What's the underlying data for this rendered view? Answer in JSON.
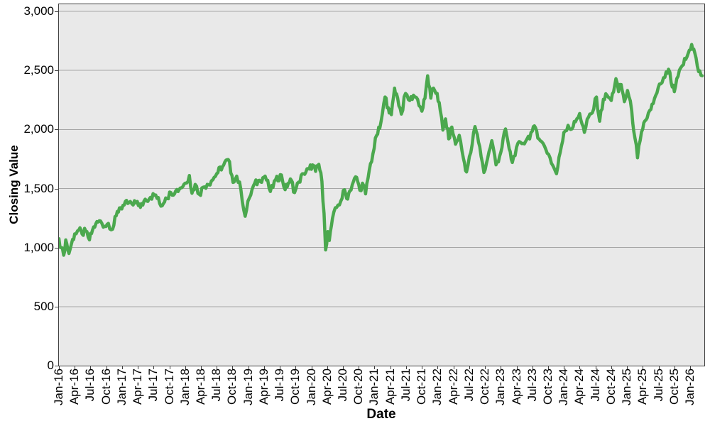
{
  "chart_data": {
    "type": "line",
    "title": "",
    "xlabel": "Date",
    "ylabel": "Closing Value",
    "legend": "none",
    "grid": "horizontal",
    "x_unit": "months since Jan-2016",
    "xlim_months": [
      0,
      122.7
    ],
    "ylim": [
      0,
      3059
    ],
    "x_tick_interval_months": 3,
    "x_tick_labels": [
      "Jan-16",
      "Apr-16",
      "Jul-16",
      "Oct-16",
      "Jan-17",
      "Apr-17",
      "Jul-17",
      "Oct-17",
      "Jan-18",
      "Apr-18",
      "Jul-18",
      "Oct-18",
      "Jan-19",
      "Apr-19",
      "Jul-19",
      "Oct-19",
      "Jan-20",
      "Apr-20",
      "Jul-20",
      "Oct-20",
      "Jan-21",
      "Apr-21",
      "Jul-21",
      "Oct-21",
      "Jan-22",
      "Apr-22",
      "Jul-22",
      "Oct-22",
      "Jan-23",
      "Apr-23",
      "Jul-23",
      "Oct-23",
      "Jan-24",
      "Apr-24",
      "Jul-24",
      "Oct-24",
      "Jan-25",
      "Apr-25",
      "Jul-25",
      "Oct-25",
      "Jan-26"
    ],
    "y_ticks": [
      {
        "value": 0,
        "label": "0"
      },
      {
        "value": 500,
        "label": "500"
      },
      {
        "value": 1000,
        "label": "1,000"
      },
      {
        "value": 1500,
        "label": "1,500"
      },
      {
        "value": 2000,
        "label": "2,000"
      },
      {
        "value": 2500,
        "label": "2,500"
      },
      {
        "value": 3000,
        "label": "3,000"
      }
    ],
    "series": [
      {
        "name": "Closing Value",
        "color": "#4ba84e",
        "points": [
          [
            0,
            1075
          ],
          [
            0.4,
            1000
          ],
          [
            0.9,
            935
          ],
          [
            1.3,
            1065
          ],
          [
            1.9,
            950
          ],
          [
            2.4,
            1035
          ],
          [
            3,
            1115
          ],
          [
            3.8,
            1150
          ],
          [
            4.4,
            1115
          ],
          [
            5.1,
            1140
          ],
          [
            5.8,
            1065
          ],
          [
            6.4,
            1150
          ],
          [
            7,
            1200
          ],
          [
            7.9,
            1225
          ],
          [
            8.7,
            1180
          ],
          [
            9.4,
            1205
          ],
          [
            10.2,
            1155
          ],
          [
            10.9,
            1270
          ],
          [
            11.5,
            1335
          ],
          [
            12.4,
            1360
          ],
          [
            13.3,
            1380
          ],
          [
            14.1,
            1360
          ],
          [
            14.9,
            1390
          ],
          [
            15.5,
            1340
          ],
          [
            16.4,
            1410
          ],
          [
            17.4,
            1425
          ],
          [
            18.4,
            1445
          ],
          [
            19.4,
            1350
          ],
          [
            20.3,
            1420
          ],
          [
            21.3,
            1465
          ],
          [
            22.2,
            1480
          ],
          [
            23.1,
            1505
          ],
          [
            24,
            1545
          ],
          [
            24.8,
            1610
          ],
          [
            25.3,
            1460
          ],
          [
            25.9,
            1535
          ],
          [
            26.7,
            1450
          ],
          [
            27.4,
            1510
          ],
          [
            28.2,
            1535
          ],
          [
            29,
            1565
          ],
          [
            30,
            1625
          ],
          [
            31.1,
            1685
          ],
          [
            32.2,
            1745
          ],
          [
            32.9,
            1610
          ],
          [
            33.3,
            1555
          ],
          [
            33.8,
            1605
          ],
          [
            34.6,
            1490
          ],
          [
            35.4,
            1265
          ],
          [
            36.2,
            1420
          ],
          [
            37,
            1525
          ],
          [
            38.1,
            1570
          ],
          [
            39.2,
            1605
          ],
          [
            40.2,
            1475
          ],
          [
            41.2,
            1575
          ],
          [
            42.3,
            1615
          ],
          [
            43,
            1490
          ],
          [
            43.6,
            1545
          ],
          [
            44.2,
            1570
          ],
          [
            44.8,
            1465
          ],
          [
            45.6,
            1555
          ],
          [
            46.5,
            1625
          ],
          [
            47.6,
            1665
          ],
          [
            48.2,
            1700
          ],
          [
            48.8,
            1645
          ],
          [
            49.4,
            1705
          ],
          [
            50,
            1560
          ],
          [
            50.4,
            1290
          ],
          [
            50.7,
            980
          ],
          [
            51.1,
            1135
          ],
          [
            51.4,
            1060
          ],
          [
            52,
            1245
          ],
          [
            52.8,
            1340
          ],
          [
            53.6,
            1395
          ],
          [
            54.3,
            1490
          ],
          [
            54.7,
            1415
          ],
          [
            55.3,
            1480
          ],
          [
            56,
            1560
          ],
          [
            56.6,
            1595
          ],
          [
            57.2,
            1485
          ],
          [
            57.7,
            1545
          ],
          [
            58.3,
            1455
          ],
          [
            59,
            1655
          ],
          [
            59.7,
            1795
          ],
          [
            60.4,
            1950
          ],
          [
            61,
            2010
          ],
          [
            61.5,
            2135
          ],
          [
            62,
            2275
          ],
          [
            62.6,
            2185
          ],
          [
            63.2,
            2125
          ],
          [
            63.8,
            2350
          ],
          [
            64.4,
            2265
          ],
          [
            65.1,
            2130
          ],
          [
            65.9,
            2305
          ],
          [
            66.7,
            2245
          ],
          [
            67.4,
            2290
          ],
          [
            68.2,
            2255
          ],
          [
            69,
            2155
          ],
          [
            69.6,
            2265
          ],
          [
            70.1,
            2455
          ],
          [
            70.7,
            2265
          ],
          [
            71.2,
            2350
          ],
          [
            71.9,
            2305
          ],
          [
            72.5,
            2160
          ],
          [
            73,
            1995
          ],
          [
            73.5,
            2090
          ],
          [
            74.1,
            1920
          ],
          [
            74.7,
            2020
          ],
          [
            75.4,
            1875
          ],
          [
            76.1,
            1950
          ],
          [
            76.9,
            1755
          ],
          [
            77.5,
            1640
          ],
          [
            78.3,
            1805
          ],
          [
            79.1,
            2025
          ],
          [
            80,
            1855
          ],
          [
            80.8,
            1635
          ],
          [
            81.5,
            1755
          ],
          [
            82.3,
            1905
          ],
          [
            83.1,
            1700
          ],
          [
            84,
            1805
          ],
          [
            84.9,
            2005
          ],
          [
            85.6,
            1835
          ],
          [
            86.2,
            1720
          ],
          [
            87,
            1850
          ],
          [
            88,
            1880
          ],
          [
            89,
            1920
          ],
          [
            90,
            1985
          ],
          [
            90.6,
            2015
          ],
          [
            91.5,
            1905
          ],
          [
            92.3,
            1860
          ],
          [
            93.1,
            1790
          ],
          [
            93.9,
            1695
          ],
          [
            94.6,
            1625
          ],
          [
            95.3,
            1805
          ],
          [
            96,
            1975
          ],
          [
            96.8,
            2035
          ],
          [
            97.3,
            2000
          ],
          [
            98.2,
            2065
          ],
          [
            99,
            2135
          ],
          [
            99.9,
            1975
          ],
          [
            100.7,
            2105
          ],
          [
            101.4,
            2140
          ],
          [
            102.2,
            2275
          ],
          [
            102.8,
            2070
          ],
          [
            103.5,
            2255
          ],
          [
            104.2,
            2290
          ],
          [
            105,
            2245
          ],
          [
            105.9,
            2430
          ],
          [
            106.4,
            2320
          ],
          [
            106.9,
            2380
          ],
          [
            107.5,
            2235
          ],
          [
            108.1,
            2330
          ],
          [
            108.9,
            2155
          ],
          [
            109.5,
            1930
          ],
          [
            110,
            1760
          ],
          [
            110.5,
            1905
          ],
          [
            111,
            2005
          ],
          [
            111.6,
            2080
          ],
          [
            112.3,
            2160
          ],
          [
            113,
            2220
          ],
          [
            113.7,
            2310
          ],
          [
            114.4,
            2385
          ],
          [
            115.2,
            2440
          ],
          [
            115.9,
            2510
          ],
          [
            116.4,
            2395
          ],
          [
            117,
            2320
          ],
          [
            117.7,
            2450
          ],
          [
            118.5,
            2540
          ],
          [
            119.4,
            2615
          ],
          [
            120.3,
            2720
          ],
          [
            120.9,
            2645
          ],
          [
            121.6,
            2490
          ],
          [
            122.3,
            2455
          ]
        ]
      }
    ]
  },
  "style": {
    "plot_background": "#e9e9e9",
    "outer_background": "#ffffff",
    "grid_color": "#a6a6a6",
    "axis_color": "#404040",
    "text_color": "#000000",
    "line_color": "#4ba84e"
  }
}
